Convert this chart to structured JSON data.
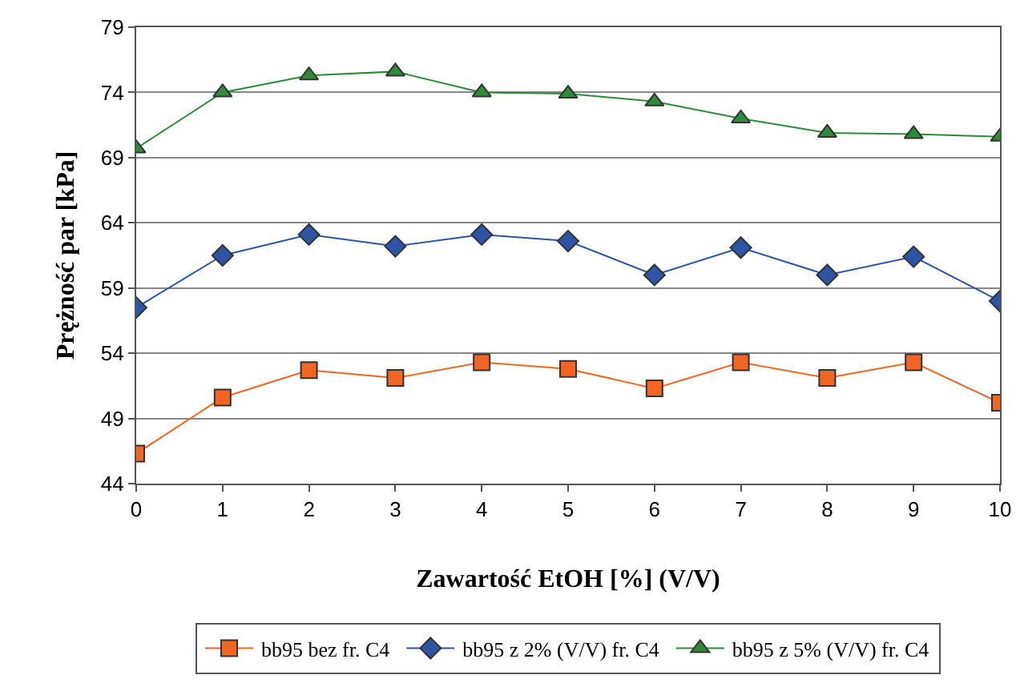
{
  "chart_data": {
    "type": "line",
    "xlabel": "Zawartość EtOH [%] (V/V)",
    "ylabel": "Prężność par [kPa]",
    "x": [
      0,
      1,
      2,
      3,
      4,
      5,
      6,
      7,
      8,
      9,
      10
    ],
    "xlim": [
      0,
      10
    ],
    "xticks": [
      0,
      1,
      2,
      3,
      4,
      5,
      6,
      7,
      8,
      9,
      10
    ],
    "ylim": [
      44,
      79
    ],
    "yticks": [
      44,
      49,
      54,
      59,
      64,
      69,
      74,
      79
    ],
    "grid": "y",
    "legend": "bottom",
    "series": [
      {
        "name": "bb95 bez fr. C4",
        "color": "#f26522",
        "marker": "square",
        "values": [
          46.3,
          50.6,
          52.7,
          52.1,
          53.3,
          52.8,
          51.3,
          53.3,
          52.1,
          53.3,
          50.2
        ]
      },
      {
        "name": "bb95 z 2% (V/V) fr. C4",
        "color": "#2e55a5",
        "marker": "diamond",
        "values": [
          57.5,
          61.5,
          63.1,
          62.2,
          63.1,
          62.6,
          60.0,
          62.1,
          60.0,
          61.4,
          58.0
        ]
      },
      {
        "name": "bb95 z 5% (V/V) fr. C4",
        "color": "#2e8b3a",
        "marker": "triangle",
        "values": [
          69.7,
          74.0,
          75.3,
          75.6,
          74.0,
          73.9,
          73.3,
          72.0,
          70.9,
          70.8,
          70.6
        ]
      }
    ]
  }
}
